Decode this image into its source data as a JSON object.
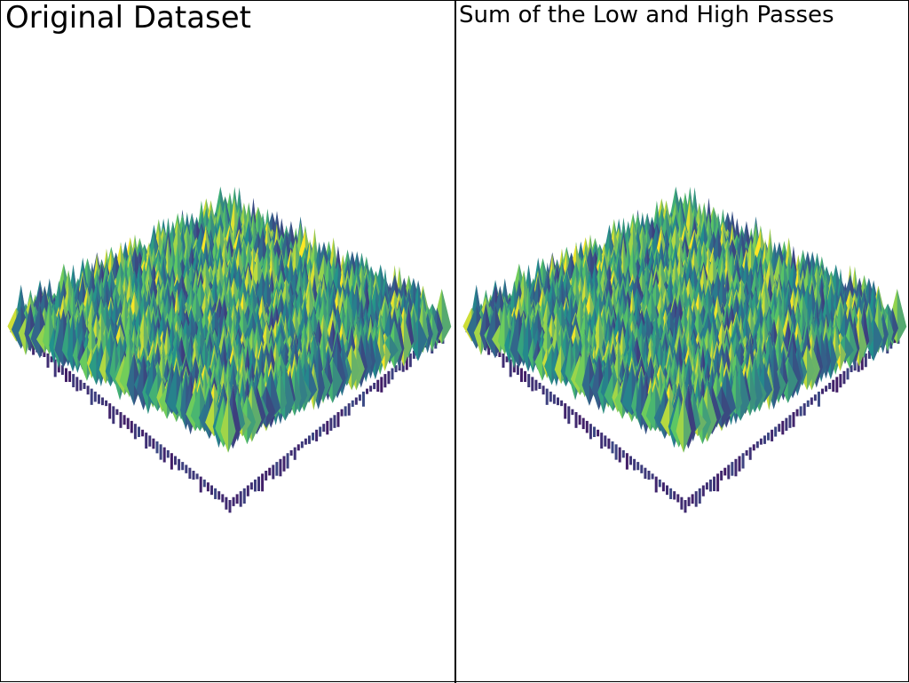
{
  "panels": [
    {
      "title": "Original Dataset"
    },
    {
      "title": "Sum of the Low and High Passes"
    }
  ],
  "colormap": [
    "#440154",
    "#3b528b",
    "#21918c",
    "#5ec962",
    "#fde725"
  ]
}
